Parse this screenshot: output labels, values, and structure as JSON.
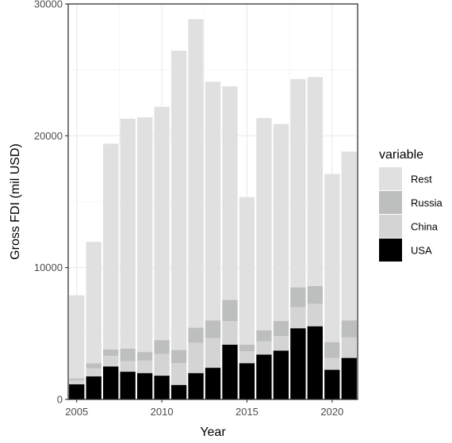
{
  "chart_data": {
    "type": "bar",
    "stacked": true,
    "xlabel": "Year",
    "ylabel": "Gross FDI (mil USD)",
    "ylim": [
      0,
      30000
    ],
    "xlim": [
      2004.5,
      2021.5
    ],
    "x_ticks": [
      2005,
      2010,
      2015,
      2020
    ],
    "y_ticks": [
      0,
      10000,
      20000,
      30000
    ],
    "grid": true,
    "legend_position": "right",
    "legend_title": "variable",
    "categories": [
      2005,
      2006,
      2007,
      2008,
      2009,
      2010,
      2011,
      2012,
      2013,
      2014,
      2015,
      2016,
      2017,
      2018,
      2019,
      2020,
      2021
    ],
    "series": [
      {
        "name": "USA",
        "color": "#000000",
        "values": [
          1150,
          1750,
          2500,
          2100,
          2000,
          1800,
          1100,
          2000,
          2400,
          4150,
          2750,
          3400,
          3700,
          5400,
          5550,
          2250,
          3150
        ]
      },
      {
        "name": "China",
        "color": "#d4d4d4",
        "values": [
          300,
          600,
          800,
          800,
          950,
          1650,
          1650,
          2300,
          2250,
          1800,
          900,
          1000,
          1100,
          1600,
          1700,
          900,
          1550
        ]
      },
      {
        "name": "Russia",
        "color": "#bdbfbe",
        "values": [
          150,
          400,
          500,
          950,
          650,
          1050,
          1000,
          1150,
          1350,
          1600,
          500,
          850,
          1150,
          1500,
          1350,
          1200,
          1300
        ]
      },
      {
        "name": "Rest",
        "color": "#e0e0e0",
        "values": [
          6300,
          9200,
          15600,
          17450,
          17800,
          17700,
          22700,
          23400,
          18100,
          16200,
          11200,
          16100,
          14950,
          15800,
          15850,
          12750,
          12800
        ]
      }
    ],
    "legend_order": [
      "Rest",
      "Russia",
      "China",
      "USA"
    ]
  }
}
